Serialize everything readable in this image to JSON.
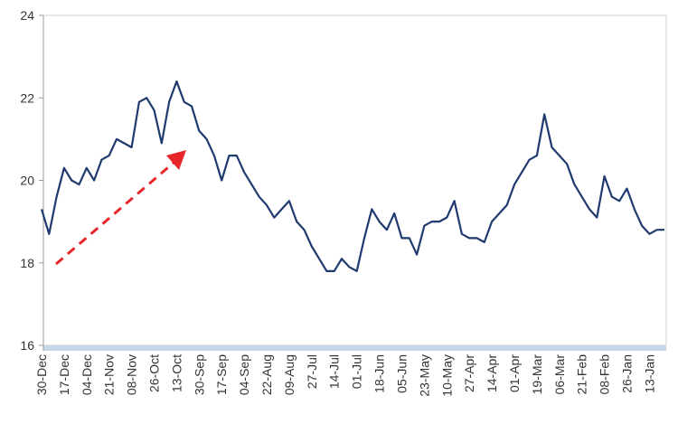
{
  "chart_data": {
    "type": "line",
    "categories": [
      "30-Dec",
      null,
      null,
      "17-Dec",
      null,
      null,
      "04-Dec",
      null,
      null,
      "21-Nov",
      null,
      null,
      "08-Nov",
      null,
      null,
      "26-Oct",
      null,
      null,
      "13-Oct",
      null,
      null,
      "30-Sep",
      null,
      null,
      "17-Sep",
      null,
      null,
      "04-Sep",
      null,
      null,
      "22-Aug",
      null,
      null,
      "09-Aug",
      null,
      null,
      "27-Jul",
      null,
      null,
      "14-Jul",
      null,
      null,
      "01-Jul",
      null,
      null,
      "18-Jun",
      null,
      null,
      "05-Jun",
      null,
      null,
      "23-May",
      null,
      null,
      "10-May",
      null,
      null,
      "27-Apr",
      null,
      null,
      "14-Apr",
      null,
      null,
      "01-Apr",
      null,
      null,
      "19-Mar",
      null,
      null,
      "06-Mar",
      null,
      null,
      "21-Feb",
      null,
      null,
      "08-Feb",
      null,
      null,
      "26-Jan",
      null,
      null,
      "13-Jan",
      null,
      null
    ],
    "series": [
      {
        "color": "#1f3a6e",
        "values": [
          19.3,
          18.7,
          19.6,
          20.3,
          20.0,
          19.9,
          20.3,
          20.0,
          20.5,
          20.6,
          21.0,
          20.9,
          20.8,
          21.9,
          22.0,
          21.7,
          20.9,
          21.9,
          22.4,
          21.9,
          21.8,
          21.2,
          21.0,
          20.6,
          20.0,
          20.6,
          20.6,
          20.2,
          19.9,
          19.6,
          19.4,
          19.1,
          19.3,
          19.5,
          19.0,
          18.8,
          18.4,
          18.1,
          17.8,
          17.8,
          18.1,
          17.9,
          17.8,
          18.6,
          19.3,
          19.0,
          18.8,
          19.2,
          18.6,
          18.6,
          18.2,
          18.9,
          19.0,
          19.0,
          19.1,
          19.5,
          18.7,
          18.6,
          18.6,
          18.5,
          19.0,
          19.2,
          19.4,
          19.9,
          20.2,
          20.5,
          20.6,
          21.6,
          20.8,
          20.6,
          20.4,
          19.9,
          19.6,
          19.3,
          19.1,
          20.1,
          19.6,
          19.5,
          19.8,
          19.3,
          18.9,
          18.7,
          18.8,
          18.8
        ]
      }
    ],
    "ylim": [
      16,
      24
    ],
    "yticks": [
      16,
      18,
      20,
      22,
      24
    ],
    "grid": false
  }
}
